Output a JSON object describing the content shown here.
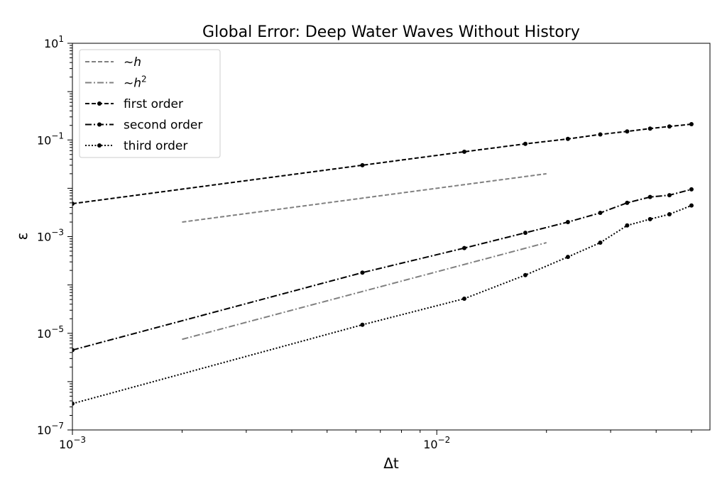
{
  "chart_data": {
    "type": "line",
    "title": "Global Error: Deep Water Waves Without History",
    "xlabel": "Δt",
    "ylabel": "ε",
    "xscale": "log",
    "yscale": "log",
    "xlim": [
      0.001,
      0.0562
    ],
    "ylim": [
      1e-07,
      10
    ],
    "x_ticks": [
      {
        "base": "10",
        "exp": "−3",
        "value": 0.001
      },
      {
        "base": "10",
        "exp": "−2",
        "value": 0.01
      }
    ],
    "y_ticks": [
      {
        "base": "10",
        "exp": "1",
        "value": 10
      },
      {
        "base": "10",
        "exp": "−1",
        "value": 0.1
      },
      {
        "base": "10",
        "exp": "−3",
        "value": 0.001
      },
      {
        "base": "10",
        "exp": "−5",
        "value": 1e-05
      },
      {
        "base": "10",
        "exp": "−7",
        "value": 1e-07
      }
    ],
    "legend_position": "top-left",
    "grid": false,
    "series": [
      {
        "name": "~h",
        "name_base": "~",
        "name_var": "h",
        "name_sup": "",
        "color": "#808080",
        "style": "dashed",
        "markers": false,
        "x": [
          0.002,
          0.02
        ],
        "y": [
          0.002,
          0.02
        ]
      },
      {
        "name": "~h2",
        "name_base": "~",
        "name_var": "h",
        "name_sup": "2",
        "color": "#808080",
        "style": "dashdot",
        "markers": false,
        "x": [
          0.002,
          0.02
        ],
        "y": [
          7.5e-06,
          0.00075
        ]
      },
      {
        "name": "first order",
        "color": "#000000",
        "style": "dashed",
        "markers": true,
        "x": [
          0.001,
          0.00625,
          0.0119,
          0.0175,
          0.0229,
          0.0281,
          0.0333,
          0.0385,
          0.0435,
          0.05
        ],
        "y": [
          0.0048,
          0.03,
          0.057,
          0.083,
          0.105,
          0.13,
          0.15,
          0.172,
          0.19,
          0.212
        ]
      },
      {
        "name": "second order",
        "color": "#000000",
        "style": "dashdot",
        "markers": true,
        "x": [
          0.001,
          0.00625,
          0.0119,
          0.0175,
          0.0229,
          0.0281,
          0.0333,
          0.0385,
          0.0435,
          0.05
        ],
        "y": [
          4.5e-06,
          0.00018,
          0.00058,
          0.0012,
          0.002,
          0.0031,
          0.005,
          0.0066,
          0.0072,
          0.0095
        ]
      },
      {
        "name": "third order",
        "color": "#000000",
        "style": "dotted",
        "markers": true,
        "x": [
          0.001,
          0.00625,
          0.0119,
          0.0175,
          0.0229,
          0.0281,
          0.0333,
          0.0385,
          0.0435,
          0.05
        ],
        "y": [
          3.5e-07,
          1.5e-05,
          5.2e-05,
          0.00016,
          0.00038,
          0.00075,
          0.0017,
          0.0023,
          0.0029,
          0.0044
        ]
      }
    ]
  }
}
